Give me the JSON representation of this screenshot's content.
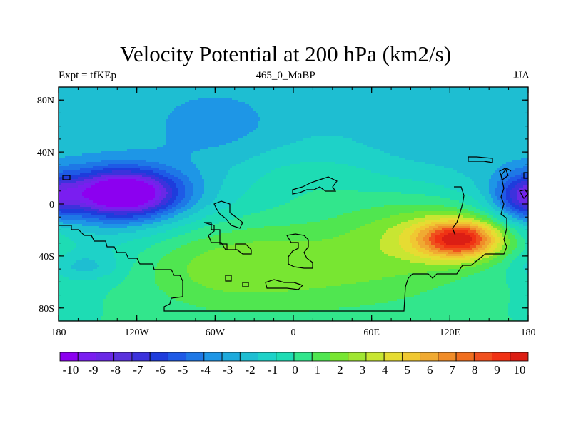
{
  "chart_data": {
    "type": "heatmap",
    "title": "Velocity Potential at 200 hPa (km2/s)",
    "subtitle_left": "Expt = tfKEp",
    "subtitle_center": "465_0_MaBP",
    "subtitle_right": "JJA",
    "x_ticks": [
      "180",
      "120W",
      "60W",
      "0",
      "60E",
      "120E",
      "180"
    ],
    "x_tick_lon": [
      -180,
      -120,
      -60,
      0,
      60,
      120,
      180
    ],
    "y_ticks": [
      "80N",
      "40N",
      "0",
      "40S",
      "80S"
    ],
    "y_tick_lat": [
      80,
      40,
      0,
      -40,
      -80
    ],
    "xlim": [
      -180,
      180
    ],
    "ylim": [
      -90,
      90
    ],
    "colorbar": {
      "labels": [
        "-10",
        "-9",
        "-8",
        "-7",
        "-6",
        "-5",
        "-4",
        "-3",
        "-2",
        "-1",
        "0",
        "1",
        "2",
        "3",
        "4",
        "5",
        "6",
        "7",
        "8",
        "9",
        "10"
      ],
      "values": [
        -10,
        -9,
        -8,
        -7,
        -6,
        -5,
        -4,
        -3,
        -2,
        -1,
        0,
        1,
        2,
        3,
        4,
        5,
        6,
        7,
        8,
        9,
        10
      ],
      "colors": [
        "#8c00f0",
        "#7a1ef0",
        "#6a28e6",
        "#5a32dc",
        "#3c32dc",
        "#1e3cdc",
        "#1e5ae6",
        "#1e78e6",
        "#1e96e6",
        "#1eaadc",
        "#1ebed2",
        "#1ed2c8",
        "#1edcb4",
        "#32e68c",
        "#50e650",
        "#78e632",
        "#a0e632",
        "#c8e632",
        "#e6dc32",
        "#f0c832",
        "#f0aa32",
        "#f08c28",
        "#f06e1e",
        "#f0501e",
        "#f03214",
        "#dc1e14"
      ]
    },
    "features": [
      {
        "name": "negative-minimum",
        "lon": -130,
        "lat": 8,
        "value": -10.5
      },
      {
        "name": "positive-maximum",
        "lon": 130,
        "lat": -27,
        "value": 8.5
      },
      {
        "name": "secondary-negative",
        "lon": 175,
        "lat": 5,
        "value": -5.5
      }
    ]
  }
}
